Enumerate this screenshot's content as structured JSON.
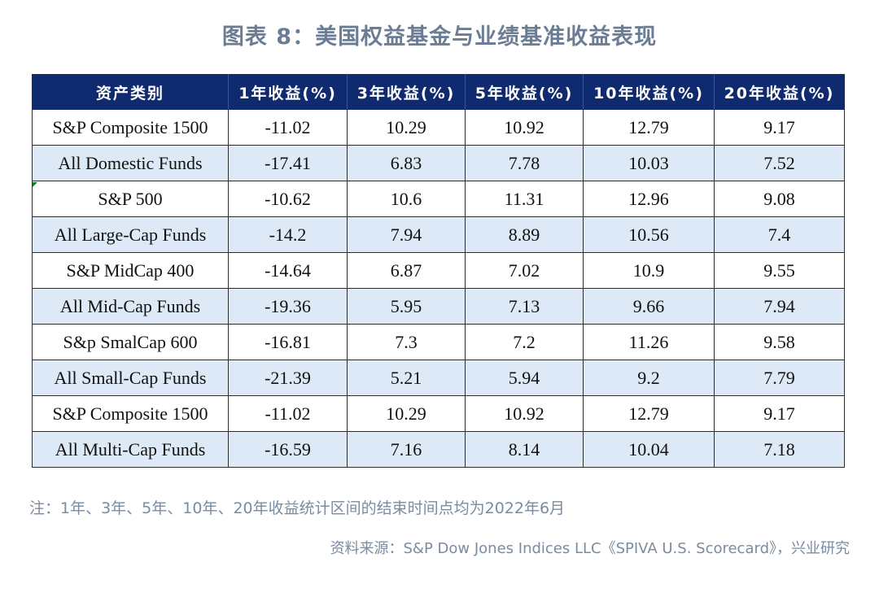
{
  "title": "图表 8：美国权益基金与业绩基准收益表现",
  "table": {
    "headers": [
      "资产类别",
      "1年收益(%)",
      "3年收益(%)",
      "5年收益(%)",
      "10年收益(%)",
      "20年收益(%)"
    ],
    "rows": [
      [
        "S&P Composite 1500",
        "-11.02",
        "10.29",
        "10.92",
        "12.79",
        "9.17"
      ],
      [
        "All Domestic Funds",
        "-17.41",
        "6.83",
        "7.78",
        "10.03",
        "7.52"
      ],
      [
        "S&P 500",
        "-10.62",
        "10.6",
        "11.31",
        "12.96",
        "9.08"
      ],
      [
        "All Large-Cap Funds",
        "-14.2",
        "7.94",
        "8.89",
        "10.56",
        "7.4"
      ],
      [
        "S&P MidCap 400",
        "-14.64",
        "6.87",
        "7.02",
        "10.9",
        "9.55"
      ],
      [
        "All Mid-Cap Funds",
        "-19.36",
        "5.95",
        "7.13",
        "9.66",
        "7.94"
      ],
      [
        "S&p SmalCap 600",
        "-16.81",
        "7.3",
        "7.2",
        "11.26",
        "9.58"
      ],
      [
        "All Small-Cap Funds",
        "-21.39",
        "5.21",
        "5.94",
        "9.2",
        "7.79"
      ],
      [
        "S&P Composite 1500",
        "-11.02",
        "10.29",
        "10.92",
        "12.79",
        "9.17"
      ],
      [
        "All Multi-Cap Funds",
        "-16.59",
        "7.16",
        "8.14",
        "10.04",
        "7.18"
      ]
    ]
  },
  "note": "注：1年、3年、5年、10年、20年收益统计区间的结束时间点均为2022年6月",
  "source": "资料来源：S&P Dow Jones Indices LLC《SPIVA U.S. Scorecard》，兴业研究",
  "colors": {
    "header_bg": "#0f2a6e",
    "row_alt_bg": "#dde9f6",
    "caption_text": "#6b7d95"
  }
}
